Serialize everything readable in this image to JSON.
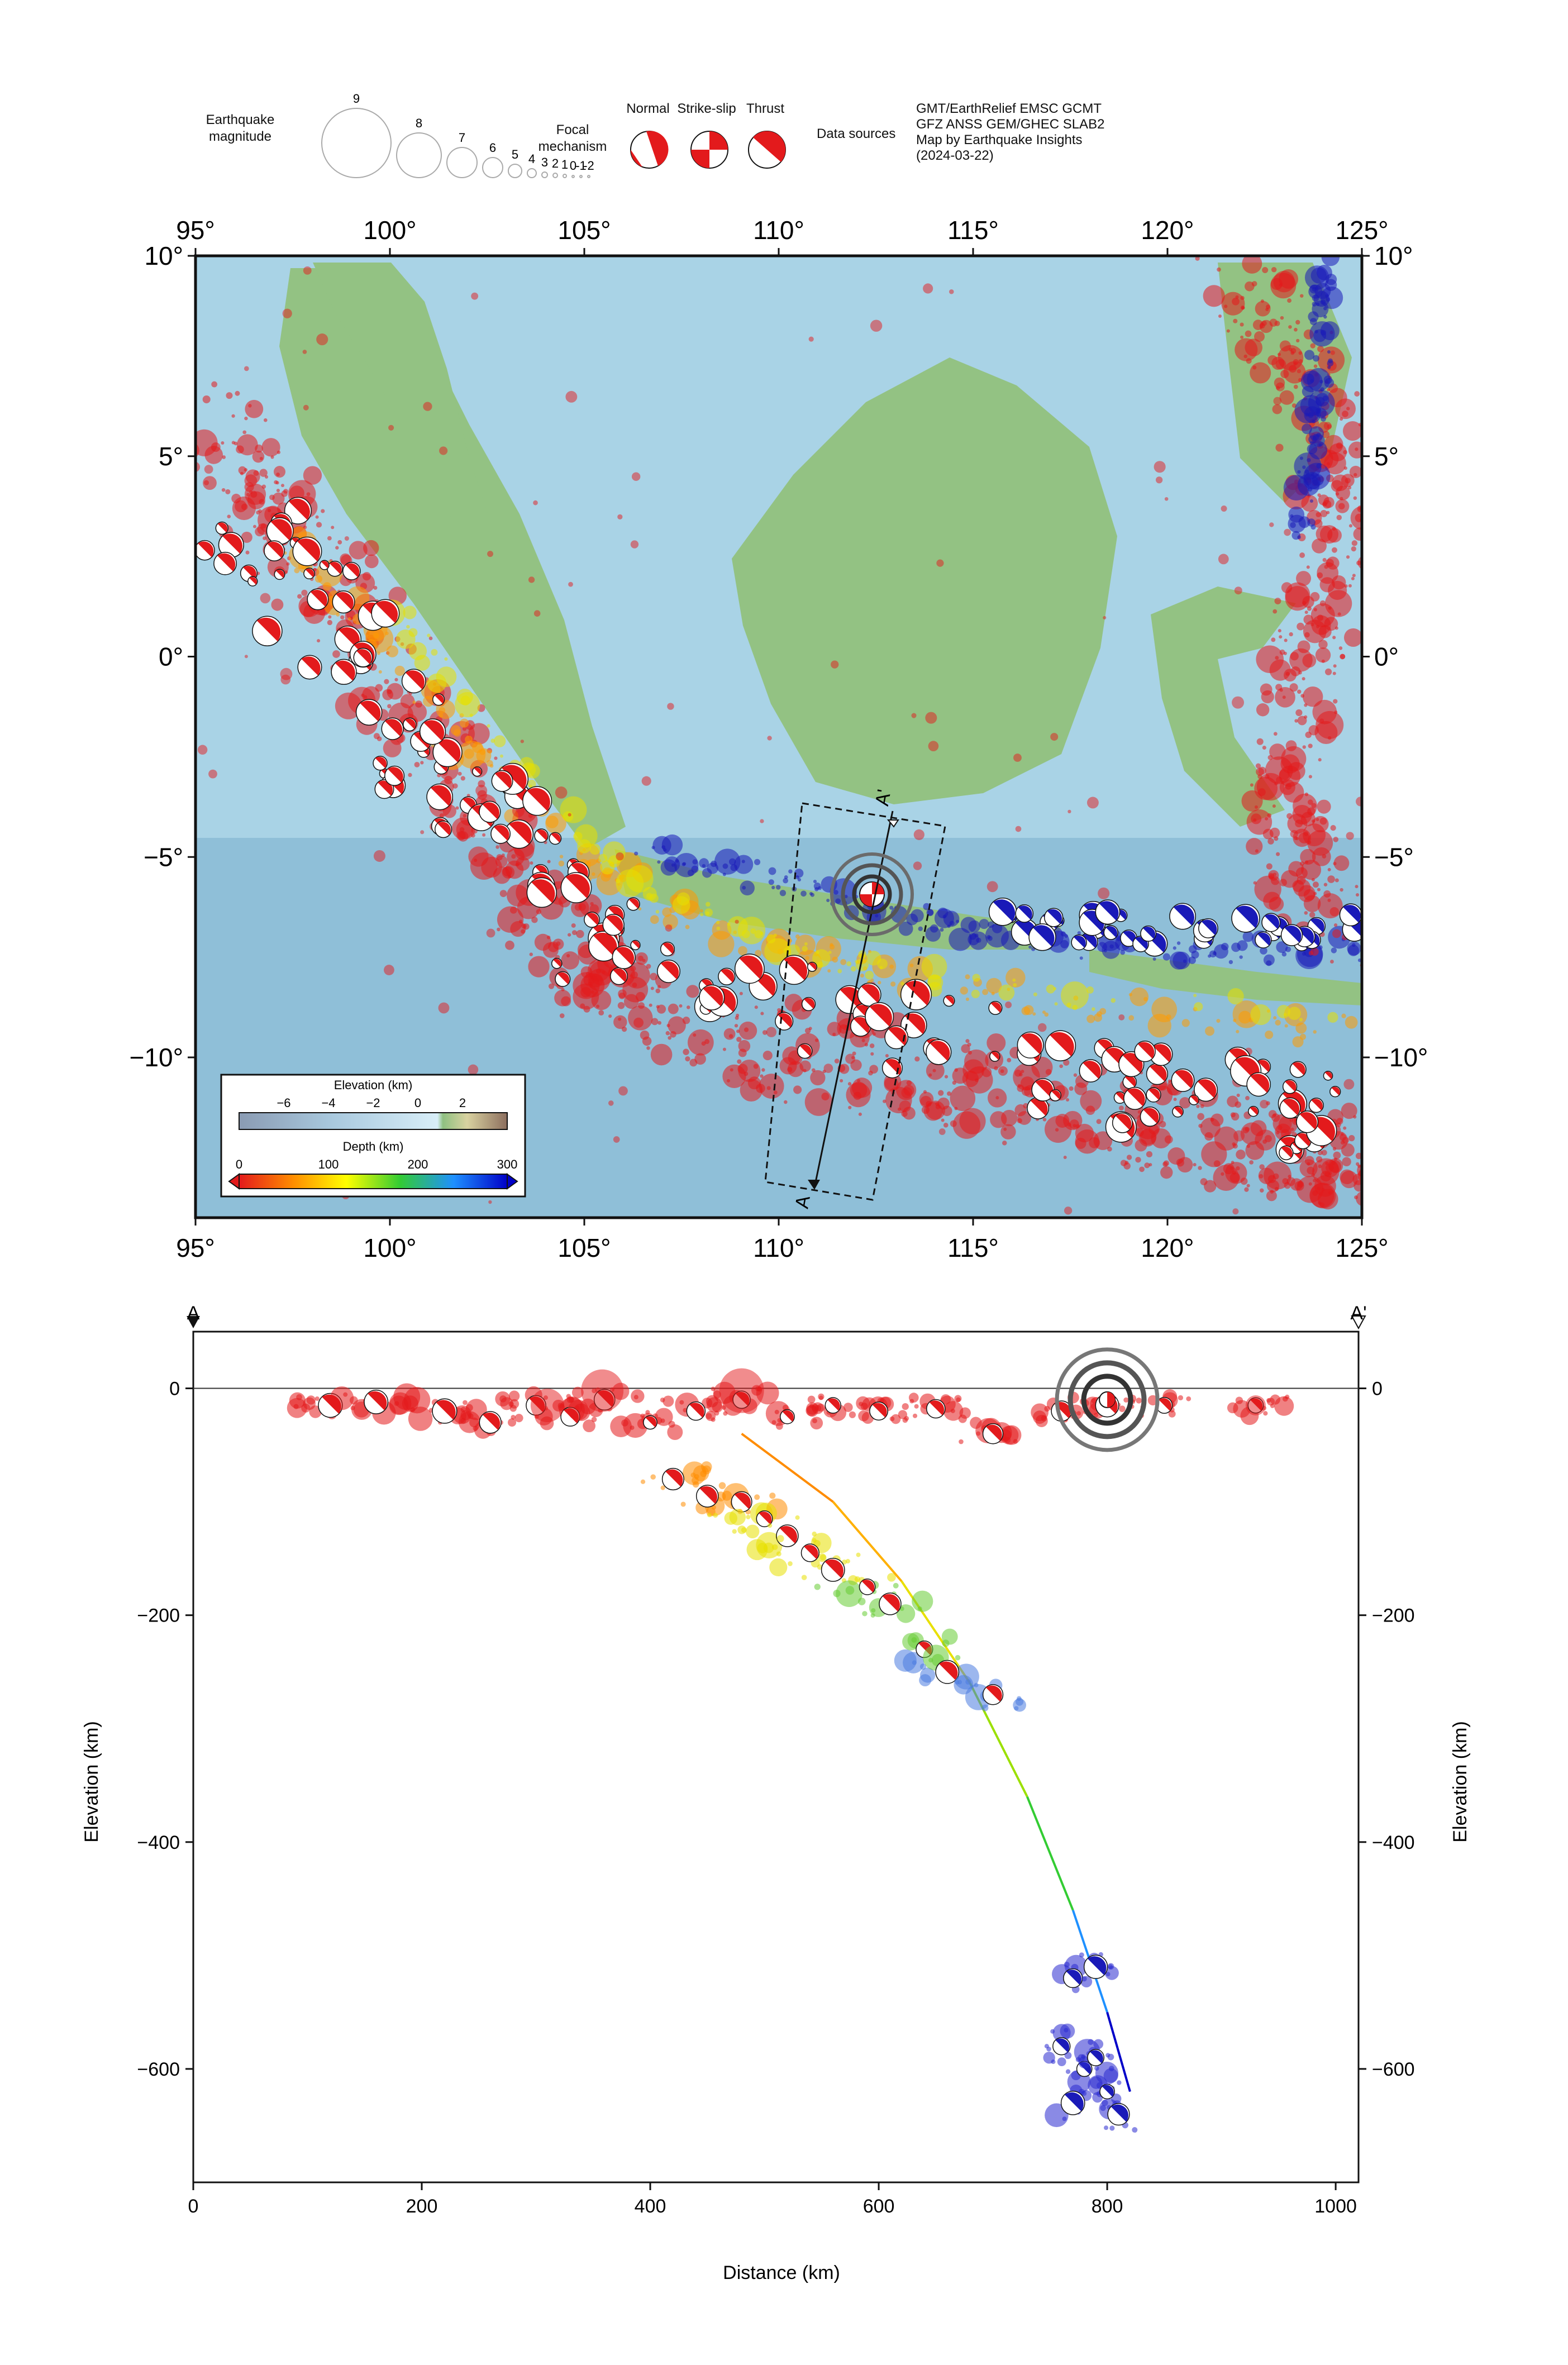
{
  "legend": {
    "magnitude_label": "Earthquake\nmagnitude",
    "magnitudes": [
      "9",
      "8",
      "7",
      "6",
      "5",
      "4",
      "3",
      "2",
      "1",
      "0",
      "-1",
      "-2"
    ],
    "mechanism_label": "Focal\nmechanism",
    "mechanism_types": [
      "Normal",
      "Strike-slip",
      "Thrust"
    ],
    "sources_label": "Data sources",
    "sources_text": [
      "GMT/EarthRelief EMSC GCMT",
      "GFZ ANSS GEM/GHEC SLAB2",
      "Map by Earthquake Insights",
      "(2024-03-22)"
    ]
  },
  "map": {
    "lon_ticks": [
      "95°",
      "100°",
      "105°",
      "110°",
      "115°",
      "120°",
      "125°"
    ],
    "lat_ticks": [
      "10°",
      "5°",
      "0°",
      "−5°",
      "−10°"
    ],
    "lon_range": [
      95,
      125
    ],
    "lat_range": [
      -14,
      10
    ],
    "profile_start_label": "A",
    "profile_end_label": "A'",
    "epicenter": {
      "lon": 112.5,
      "lat": -6.0
    },
    "colors": {
      "ocean": "#a9d3e6",
      "land": "#9cc68a",
      "quake_shallow": "#e31a1c",
      "quake_deep": "#1a1ab8"
    }
  },
  "colorbars": {
    "elevation_title": "Elevation (km)",
    "elevation_ticks": [
      "−6",
      "−4",
      "−2",
      "0",
      "2"
    ],
    "depth_title": "Depth (km)",
    "depth_ticks": [
      "0",
      "100",
      "200",
      "300"
    ]
  },
  "chart_data": {
    "type": "scatter",
    "title": "",
    "xlabel": "Distance (km)",
    "ylabel": "Elevation (km)",
    "xlim": [
      0,
      1020
    ],
    "ylim": [
      -700,
      50
    ],
    "x_ticks": [
      "0",
      "200",
      "400",
      "600",
      "800",
      "1000"
    ],
    "y_ticks": [
      "0",
      "−200",
      "−400",
      "−600"
    ],
    "profile_start_label": "A",
    "profile_end_label": "A'",
    "slab_curve": [
      [
        480,
        -40
      ],
      [
        560,
        -100
      ],
      [
        620,
        -170
      ],
      [
        680,
        -260
      ],
      [
        730,
        -360
      ],
      [
        770,
        -460
      ],
      [
        800,
        -550
      ],
      [
        820,
        -620
      ]
    ],
    "series": [
      {
        "values": [
          [
            120,
            -15
          ],
          [
            160,
            -12
          ],
          [
            220,
            -20
          ],
          [
            260,
            -30
          ],
          [
            300,
            -15
          ],
          [
            330,
            -25
          ],
          [
            360,
            -10
          ],
          [
            400,
            -30
          ],
          [
            440,
            -20
          ],
          [
            480,
            -10
          ],
          [
            520,
            -25
          ],
          [
            560,
            -15
          ],
          [
            600,
            -20
          ],
          [
            650,
            -18
          ],
          [
            700,
            -40
          ],
          [
            760,
            -20
          ],
          [
            800,
            -15
          ],
          [
            850,
            -15
          ],
          [
            930,
            -15
          ]
        ]
      },
      {
        "values": [
          [
            420,
            -80
          ],
          [
            450,
            -95
          ],
          [
            480,
            -100
          ],
          [
            500,
            -115
          ],
          [
            520,
            -130
          ],
          [
            540,
            -145
          ],
          [
            560,
            -160
          ],
          [
            590,
            -175
          ],
          [
            610,
            -190
          ],
          [
            640,
            -230
          ],
          [
            660,
            -250
          ],
          [
            700,
            -270
          ]
        ]
      },
      {
        "values": [
          [
            770,
            -520
          ],
          [
            790,
            -510
          ],
          [
            760,
            -580
          ],
          [
            780,
            -600
          ],
          [
            800,
            -620
          ],
          [
            770,
            -630
          ],
          [
            810,
            -640
          ],
          [
            790,
            -590
          ]
        ]
      }
    ]
  }
}
